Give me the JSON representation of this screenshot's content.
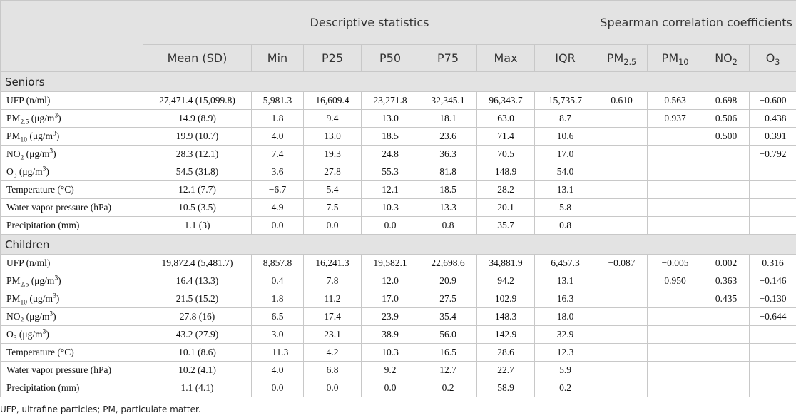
{
  "table": {
    "header": {
      "group1": "Descriptive statistics",
      "group2": "Spearman correlation coefficients",
      "columns": [
        [
          {
            "text": "Mean (SD)"
          }
        ],
        [
          {
            "text": "Min"
          }
        ],
        [
          {
            "text": "P25"
          }
        ],
        [
          {
            "text": "P50"
          }
        ],
        [
          {
            "text": "P75"
          }
        ],
        [
          {
            "text": "Max"
          }
        ],
        [
          {
            "text": "IQR"
          }
        ],
        [
          {
            "text": "PM"
          },
          {
            "sub": "2.5"
          }
        ],
        [
          {
            "text": "PM"
          },
          {
            "sub": "10"
          }
        ],
        [
          {
            "text": "NO"
          },
          {
            "sub": "2"
          }
        ],
        [
          {
            "text": "O"
          },
          {
            "sub": "3"
          }
        ]
      ]
    },
    "sections": [
      {
        "title": "Seniors",
        "rows": [
          {
            "label": [
              {
                "text": "UFP (n/ml)"
              }
            ],
            "cells": [
              "27,471.4 (15,099.8)",
              "5,981.3",
              "16,609.4",
              "23,271.8",
              "32,345.1",
              "96,343.7",
              "15,735.7",
              "0.610",
              "0.563",
              "0.698",
              "−0.600"
            ]
          },
          {
            "label": [
              {
                "text": "PM"
              },
              {
                "sub": "2.5"
              },
              {
                "text": " (μg/m"
              },
              {
                "sup": "3"
              },
              {
                "text": ")"
              }
            ],
            "cells": [
              "14.9 (8.9)",
              "1.8",
              "9.4",
              "13.0",
              "18.1",
              "63.0",
              "8.7",
              null,
              "0.937",
              "0.506",
              "−0.438"
            ]
          },
          {
            "label": [
              {
                "text": "PM"
              },
              {
                "sub": "10"
              },
              {
                "text": " (μg/m"
              },
              {
                "sup": "3"
              },
              {
                "text": ")"
              }
            ],
            "cells": [
              "19.9 (10.7)",
              "4.0",
              "13.0",
              "18.5",
              "23.6",
              "71.4",
              "10.6",
              null,
              null,
              "0.500",
              "−0.391"
            ]
          },
          {
            "label": [
              {
                "text": "NO"
              },
              {
                "sub": "2"
              },
              {
                "text": " (μg/m"
              },
              {
                "sup": "3"
              },
              {
                "text": ")"
              }
            ],
            "cells": [
              "28.3 (12.1)",
              "7.4",
              "19.3",
              "24.8",
              "36.3",
              "70.5",
              "17.0",
              null,
              null,
              null,
              "−0.792"
            ]
          },
          {
            "label": [
              {
                "text": "O"
              },
              {
                "sub": "3"
              },
              {
                "text": " (μg/m"
              },
              {
                "sup": "3"
              },
              {
                "text": ")"
              }
            ],
            "cells": [
              "54.5 (31.8)",
              "3.6",
              "27.8",
              "55.3",
              "81.8",
              "148.9",
              "54.0",
              null,
              null,
              null,
              null
            ]
          },
          {
            "label": [
              {
                "text": "Temperature (°C)"
              }
            ],
            "cells": [
              "12.1 (7.7)",
              "−6.7",
              "5.4",
              "12.1",
              "18.5",
              "28.2",
              "13.1",
              null,
              null,
              null,
              null
            ]
          },
          {
            "label": [
              {
                "text": "Water vapor pressure (hPa)"
              }
            ],
            "cells": [
              "10.5 (3.5)",
              "4.9",
              "7.5",
              "10.3",
              "13.3",
              "20.1",
              "5.8",
              null,
              null,
              null,
              null
            ]
          },
          {
            "label": [
              {
                "text": "Precipitation (mm)"
              }
            ],
            "cells": [
              "1.1 (3)",
              "0.0",
              "0.0",
              "0.0",
              "0.8",
              "35.7",
              "0.8",
              null,
              null,
              null,
              null
            ]
          }
        ]
      },
      {
        "title": "Children",
        "rows": [
          {
            "label": [
              {
                "text": "UFP (n/ml)"
              }
            ],
            "cells": [
              "19,872.4 (5,481.7)",
              "8,857.8",
              "16,241.3",
              "19,582.1",
              "22,698.6",
              "34,881.9",
              "6,457.3",
              "−0.087",
              "−0.005",
              "0.002",
              "0.316"
            ]
          },
          {
            "label": [
              {
                "text": "PM"
              },
              {
                "sub": "2.5"
              },
              {
                "text": " (μg/m"
              },
              {
                "sup": "3"
              },
              {
                "text": ")"
              }
            ],
            "cells": [
              "16.4 (13.3)",
              "0.4",
              "7.8",
              "12.0",
              "20.9",
              "94.2",
              "13.1",
              null,
              "0.950",
              "0.363",
              "−0.146"
            ]
          },
          {
            "label": [
              {
                "text": "PM"
              },
              {
                "sub": "10"
              },
              {
                "text": " (μg/m"
              },
              {
                "sup": "3"
              },
              {
                "text": ")"
              }
            ],
            "cells": [
              "21.5 (15.2)",
              "1.8",
              "11.2",
              "17.0",
              "27.5",
              "102.9",
              "16.3",
              null,
              null,
              "0.435",
              "−0.130"
            ]
          },
          {
            "label": [
              {
                "text": "NO"
              },
              {
                "sub": "2"
              },
              {
                "text": " (μg/m"
              },
              {
                "sup": "3"
              },
              {
                "text": ")"
              }
            ],
            "cells": [
              "27.8 (16)",
              "6.5",
              "17.4",
              "23.9",
              "35.4",
              "148.3",
              "18.0",
              null,
              null,
              null,
              "−0.644"
            ]
          },
          {
            "label": [
              {
                "text": "O"
              },
              {
                "sub": "3"
              },
              {
                "text": " (μg/m"
              },
              {
                "sup": "3"
              },
              {
                "text": ")"
              }
            ],
            "cells": [
              "43.2 (27.9)",
              "3.0",
              "23.1",
              "38.9",
              "56.0",
              "142.9",
              "32.9",
              null,
              null,
              null,
              null
            ]
          },
          {
            "label": [
              {
                "text": "Temperature (°C)"
              }
            ],
            "cells": [
              "10.1 (8.6)",
              "−11.3",
              "4.2",
              "10.3",
              "16.5",
              "28.6",
              "12.3",
              null,
              null,
              null,
              null
            ]
          },
          {
            "label": [
              {
                "text": "Water vapor pressure (hPa)"
              }
            ],
            "cells": [
              "10.2 (4.1)",
              "4.0",
              "6.8",
              "9.2",
              "12.7",
              "22.7",
              "5.9",
              null,
              null,
              null,
              null
            ]
          },
          {
            "label": [
              {
                "text": "Precipitation (mm)"
              }
            ],
            "cells": [
              "1.1 (4.1)",
              "0.0",
              "0.0",
              "0.0",
              "0.2",
              "58.9",
              "0.2",
              null,
              null,
              null,
              null
            ]
          }
        ]
      }
    ]
  },
  "footnote": "UFP, ultrafine particles; PM, particulate matter."
}
